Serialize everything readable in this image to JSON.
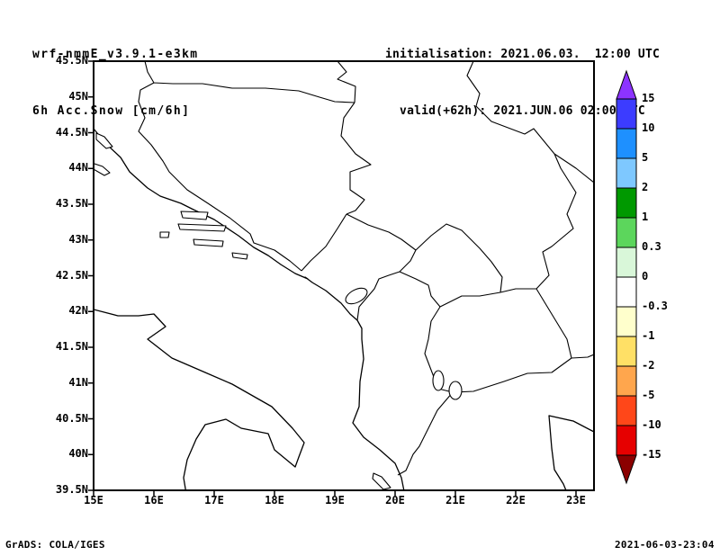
{
  "header": {
    "line1": "wrf-nmmE_v3.9.1-e3km",
    "line2": "6h Acc.Snow [cm/6h]",
    "init": "initialisation: 2021.06.03.  12:00 UTC",
    "valid": "valid(+62h): 2021.JUN.06 02:00 UTC"
  },
  "footer": {
    "left": "GrADS: COLA/IGES",
    "right": "2021-06-03-23:04"
  },
  "chart_data": {
    "type": "map",
    "title": "6h Acc.Snow [cm/6h]",
    "model": "wrf-nmmE_v3.9.1-e3km",
    "initialization": "2021.06.03. 12:00 UTC",
    "valid_time": "valid(+62h): 2021.JUN.06 02:00 UTC",
    "projection": "lat/lon, Balkans / Adriatic domain",
    "lon_range_deg_east": [
      15,
      23.3
    ],
    "lat_range_deg_north": [
      39.5,
      45.5
    ],
    "x_ticks": [
      "15E",
      "16E",
      "17E",
      "18E",
      "19E",
      "20E",
      "21E",
      "22E",
      "23E"
    ],
    "y_ticks": [
      "45.5N",
      "45N",
      "44.5N",
      "44N",
      "43.5N",
      "43N",
      "42.5N",
      "42N",
      "41.5N",
      "41N",
      "40.5N",
      "40N",
      "39.5N"
    ],
    "field": {
      "name": "6h accumulated snow",
      "units": "cm/6h",
      "values_shown": "no shaded contours anywhere in the domain (snow field is 0 / below 0.3 everywhere)"
    },
    "colorbar": {
      "labels": [
        "15",
        "10",
        "5",
        "2",
        "1",
        "0.3",
        "0",
        "-0.3",
        "-1",
        "-2",
        "-5",
        "-10",
        "-15"
      ],
      "segment_colors_top_to_bottom": [
        "#3c3cff",
        "#1e90ff",
        "#7ec8ff",
        "#009900",
        "#5cd65c",
        "#d9f7d9",
        "#ffffff",
        "#ffffcc",
        "#ffe066",
        "#ffa64d",
        "#ff4719",
        "#e60000"
      ],
      "arrow_top_color": "#8c33ff",
      "arrow_bottom_color": "#8b0000"
    },
    "geography_shown": "coastlines of Adriatic/Ionian/Aegean seas with Dalmatian islands, Italy, and national borders of Croatia, Bosnia and Herzegovina, Serbia, Montenegro, Kosovo, Albania, North Macedonia, Greece, Bulgaria, Romania; lakes Skadar, Ohrid, Prespa"
  }
}
